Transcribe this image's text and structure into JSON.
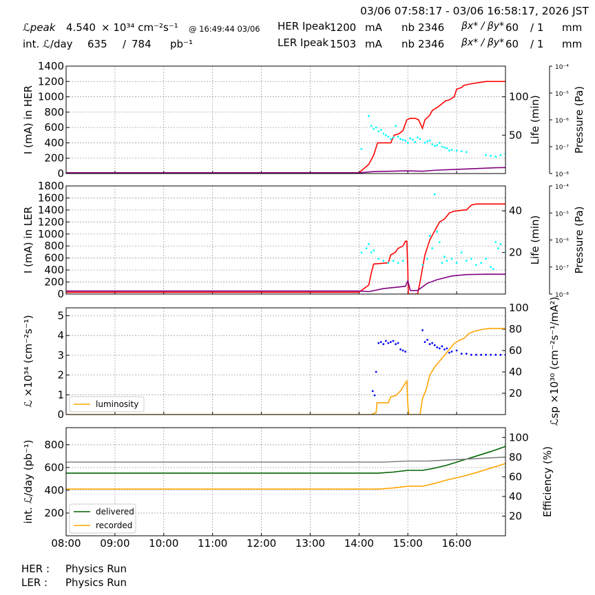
{
  "header": {
    "time_range": "03/06 07:58:17 - 03/06 16:58:17, 2026 JST",
    "lpeak_label": "ℒpeak",
    "lpeak_value": "4.540",
    "lpeak_unit": "× 10³⁴ cm⁻²s⁻¹",
    "lpeak_time": "@ 16:49:44 03/06",
    "intlum_label": "int. ℒ/day",
    "intlum_value": "635",
    "intlum_slash": "/",
    "intlum_total": "784",
    "intlum_unit": "pb⁻¹",
    "her_label": "HER Ipeak",
    "her_ipeak": "1200",
    "her_unit": "mA",
    "her_nb_label": "nb",
    "her_nb": "2346",
    "her_beta_label": "βx* / βy*",
    "her_beta_x": "60",
    "her_beta_y": "/ 1",
    "her_beta_unit": "mm",
    "ler_label": "LER Ipeak",
    "ler_ipeak": "1503",
    "ler_unit": "mA",
    "ler_nb_label": "nb",
    "ler_nb": "2346",
    "ler_beta_label": "βx* / βy*",
    "ler_beta_x": "60",
    "ler_beta_y": "/ 1",
    "ler_beta_unit": "mm"
  },
  "footer": {
    "her_label": "HER :",
    "her_status": "Physics Run",
    "ler_label": "LER :",
    "ler_status": "Physics Run"
  },
  "colors": {
    "current": "#ff0000",
    "life": "#00ffff",
    "pressure": "#800080",
    "luminosity": "#ffa500",
    "specific_lum": "#0000ff",
    "delivered": "#006400",
    "recorded": "#ffa500",
    "efficiency": "#808080",
    "grid": "#a0a0a0"
  },
  "chart_data": [
    {
      "type": "line",
      "id": "her",
      "ylabel": "I (mA) in HER",
      "ylim": [
        0,
        1400
      ],
      "yticks": [
        0,
        200,
        400,
        600,
        800,
        1000,
        1200,
        1400
      ],
      "y2label": "Life (min)",
      "y2lim": [
        0,
        140
      ],
      "y2ticks": [
        50,
        100
      ],
      "y3label": "Pressure (Pa)",
      "y3log": true,
      "y3ticks": [
        "10⁻⁸",
        "10⁻⁷",
        "10⁻⁶",
        "10⁻⁵",
        "10⁻⁴"
      ],
      "xlim": [
        8.0,
        17.0
      ],
      "grid": true,
      "series": [
        {
          "role": "current",
          "x": [
            8.0,
            14.0,
            14.2,
            14.3,
            14.38,
            14.65,
            14.72,
            14.82,
            14.9,
            14.98,
            15.05,
            15.15,
            15.22,
            15.3,
            15.35,
            15.45,
            15.5,
            15.62,
            15.68,
            15.78,
            15.85,
            15.95,
            16.0,
            16.1,
            16.15,
            16.3,
            16.5,
            16.6,
            16.75,
            16.85,
            17.0
          ],
          "y": [
            10,
            10,
            120,
            240,
            400,
            400,
            500,
            520,
            560,
            700,
            720,
            720,
            700,
            590,
            700,
            760,
            820,
            870,
            900,
            950,
            960,
            1000,
            1100,
            1120,
            1150,
            1170,
            1190,
            1200,
            1200,
            1200,
            1200
          ]
        },
        {
          "role": "life",
          "x": [
            14.05,
            14.2,
            14.25,
            14.3,
            14.35,
            14.4,
            14.45,
            14.5,
            14.55,
            14.6,
            14.65,
            14.7,
            14.75,
            14.8,
            14.85,
            14.9,
            14.95,
            15.0,
            15.05,
            15.1,
            15.15,
            15.2,
            15.25,
            15.35,
            15.4,
            15.45,
            15.5,
            15.55,
            15.6,
            15.65,
            15.7,
            15.75,
            15.8,
            15.85,
            15.9,
            16.0,
            16.1,
            16.2,
            16.6,
            16.7,
            16.8,
            16.9,
            17.0
          ],
          "y": [
            32,
            75,
            62,
            58,
            60,
            55,
            57,
            52,
            50,
            48,
            45,
            47,
            62,
            48,
            45,
            44,
            43,
            40,
            46,
            44,
            41,
            47,
            45,
            40,
            42,
            43,
            38,
            36,
            37,
            40,
            35,
            34,
            33,
            30,
            31,
            30,
            29,
            28,
            24,
            23,
            22,
            24,
            26
          ]
        },
        {
          "role": "pressure",
          "x": [
            8.0,
            14.0,
            14.3,
            15.0,
            15.3,
            15.6,
            16.0,
            16.4,
            16.8,
            17.0
          ],
          "y": [
            10,
            10,
            25,
            35,
            30,
            45,
            55,
            65,
            75,
            78
          ]
        }
      ]
    },
    {
      "type": "line",
      "id": "ler",
      "ylabel": "I (mA) in LER",
      "ylim": [
        0,
        1800
      ],
      "yticks": [
        0,
        200,
        400,
        600,
        800,
        1000,
        1200,
        1400,
        1600,
        1800
      ],
      "y2label": "Life (min)",
      "y2lim": [
        0,
        52
      ],
      "y2ticks": [
        20,
        40
      ],
      "y3label": "Pressure (Pa)",
      "y3log": true,
      "y3ticks": [
        "10⁻⁸",
        "10⁻⁷",
        "10⁻⁶",
        "10⁻⁵",
        "10⁻⁴"
      ],
      "xlim": [
        8.0,
        17.0
      ],
      "grid": true,
      "series": [
        {
          "role": "current",
          "x": [
            8.0,
            14.0,
            14.2,
            14.25,
            14.3,
            14.6,
            14.65,
            14.75,
            14.8,
            14.9,
            14.95,
            14.98,
            15.0,
            15.01,
            15.02,
            15.2,
            15.25,
            15.35,
            15.45,
            15.55,
            15.65,
            15.75,
            15.85,
            15.95,
            16.05,
            16.15,
            16.2,
            16.3,
            16.4,
            16.6,
            16.8,
            16.9,
            17.0
          ],
          "y": [
            30,
            30,
            150,
            350,
            500,
            520,
            650,
            700,
            760,
            800,
            880,
            880,
            400,
            0,
            0,
            0,
            200,
            650,
            900,
            1050,
            1200,
            1250,
            1350,
            1380,
            1390,
            1400,
            1400,
            1480,
            1500,
            1500,
            1500,
            1500,
            1500
          ]
        },
        {
          "role": "life",
          "x": [
            14.05,
            14.15,
            14.2,
            14.25,
            14.3,
            14.4,
            14.5,
            14.6,
            14.7,
            14.8,
            14.9,
            15.3,
            15.4,
            15.45,
            15.5,
            15.55,
            15.6,
            15.65,
            15.7,
            15.75,
            15.8,
            15.9,
            16.0,
            16.1,
            16.2,
            16.3,
            16.4,
            16.5,
            16.6,
            16.7,
            16.75,
            16.8,
            16.85,
            16.9,
            17.0
          ],
          "y": [
            20,
            22,
            24,
            20,
            21,
            17,
            16,
            15,
            16,
            15,
            16,
            14,
            17,
            28,
            22,
            48,
            30,
            25,
            15,
            18,
            16,
            17,
            15,
            20,
            16,
            17,
            14,
            15,
            17,
            13,
            12,
            25,
            22,
            24,
            20
          ]
        },
        {
          "role": "pressure",
          "x": [
            8.0,
            14.0,
            14.2,
            14.5,
            14.95,
            15.0,
            15.05,
            15.2,
            15.4,
            15.6,
            15.9,
            16.2,
            16.6,
            17.0
          ],
          "y": [
            50,
            50,
            40,
            90,
            130,
            220,
            60,
            60,
            180,
            240,
            300,
            325,
            330,
            330
          ]
        }
      ]
    },
    {
      "type": "line",
      "id": "lum",
      "ylabel": "ℒ ×10³⁴ (cm⁻²s⁻¹)",
      "ylim": [
        0,
        5.4
      ],
      "yticks": [
        0,
        1,
        2,
        3,
        4,
        5
      ],
      "y2label": "ℒsp ×10³⁰ (cm⁻²s⁻¹/mA²)",
      "y2lim": [
        0,
        100
      ],
      "y2ticks": [
        20,
        40,
        60,
        80,
        100
      ],
      "xlim": [
        8.0,
        17.0
      ],
      "grid": true,
      "legend": {
        "position": "lower-left",
        "entries": [
          "luminosity"
        ]
      },
      "series": [
        {
          "role": "luminosity",
          "name": "luminosity",
          "x": [
            8.0,
            14.25,
            14.35,
            14.37,
            14.6,
            14.65,
            14.75,
            14.85,
            14.95,
            14.98,
            15.0,
            15.02,
            15.25,
            15.3,
            15.38,
            15.45,
            15.55,
            15.65,
            15.75,
            15.85,
            15.95,
            16.05,
            16.15,
            16.25,
            16.35,
            16.5,
            16.65,
            16.8,
            17.0
          ],
          "y": [
            0,
            0,
            0.1,
            0.6,
            0.6,
            0.9,
            0.95,
            1.2,
            1.6,
            1.7,
            0.5,
            0,
            0,
            0.8,
            1.3,
            2.0,
            2.4,
            2.7,
            3.0,
            3.3,
            3.6,
            3.75,
            3.85,
            4.1,
            4.2,
            4.3,
            4.35,
            4.35,
            4.35
          ]
        },
        {
          "role": "specific_lum",
          "x": [
            14.28,
            14.32,
            14.35,
            14.4,
            14.45,
            14.5,
            14.55,
            14.6,
            14.65,
            14.7,
            14.75,
            14.8,
            14.85,
            14.9,
            14.95,
            15.3,
            15.35,
            15.4,
            15.45,
            15.5,
            15.55,
            15.6,
            15.65,
            15.7,
            15.75,
            15.8,
            15.85,
            15.9,
            16.0,
            16.1,
            16.2,
            16.3,
            16.4,
            16.5,
            16.6,
            16.7,
            16.8,
            16.9,
            17.0
          ],
          "y": [
            22,
            18,
            40,
            67,
            68,
            66,
            69,
            67,
            68,
            69,
            66,
            67,
            61,
            60,
            59,
            79,
            68,
            70,
            66,
            67,
            65,
            63,
            62,
            64,
            61,
            62,
            58,
            59,
            60,
            57,
            57,
            56,
            56,
            56,
            56,
            56,
            56,
            56,
            56
          ]
        }
      ]
    },
    {
      "type": "line",
      "id": "intlum",
      "ylabel": "int. ℒ/day (pb⁻¹)",
      "ylim": [
        0,
        950
      ],
      "yticks": [
        200,
        400,
        600,
        800
      ],
      "y2label": "Efficiency (%)",
      "y2lim": [
        0,
        110
      ],
      "y2ticks": [
        20,
        40,
        60,
        80,
        100
      ],
      "xlim": [
        8.0,
        17.0
      ],
      "xticks": [
        "08:00",
        "09:00",
        "10:00",
        "11:00",
        "12:00",
        "13:00",
        "14:00",
        "15:00",
        "16:00"
      ],
      "grid": true,
      "legend": {
        "position": "lower-left",
        "entries": [
          "delivered",
          "recorded"
        ]
      },
      "series": [
        {
          "role": "delivered",
          "name": "delivered",
          "x": [
            8.0,
            14.0,
            14.4,
            14.7,
            15.0,
            15.3,
            15.5,
            15.8,
            16.1,
            16.4,
            16.7,
            17.0
          ],
          "y": [
            550,
            550,
            550,
            560,
            575,
            575,
            590,
            620,
            660,
            700,
            740,
            785
          ]
        },
        {
          "role": "recorded",
          "name": "recorded",
          "x": [
            8.0,
            14.0,
            14.4,
            14.7,
            15.0,
            15.3,
            15.5,
            15.8,
            16.1,
            16.4,
            16.7,
            17.0
          ],
          "y": [
            410,
            410,
            410,
            420,
            435,
            435,
            455,
            490,
            520,
            555,
            595,
            635
          ]
        },
        {
          "role": "efficiency",
          "x": [
            8.0,
            14.0,
            14.5,
            15.0,
            15.4,
            15.8,
            16.2,
            16.6,
            17.0
          ],
          "y": [
            75,
            75,
            75,
            76,
            76,
            77,
            78,
            79,
            80
          ]
        }
      ]
    }
  ]
}
